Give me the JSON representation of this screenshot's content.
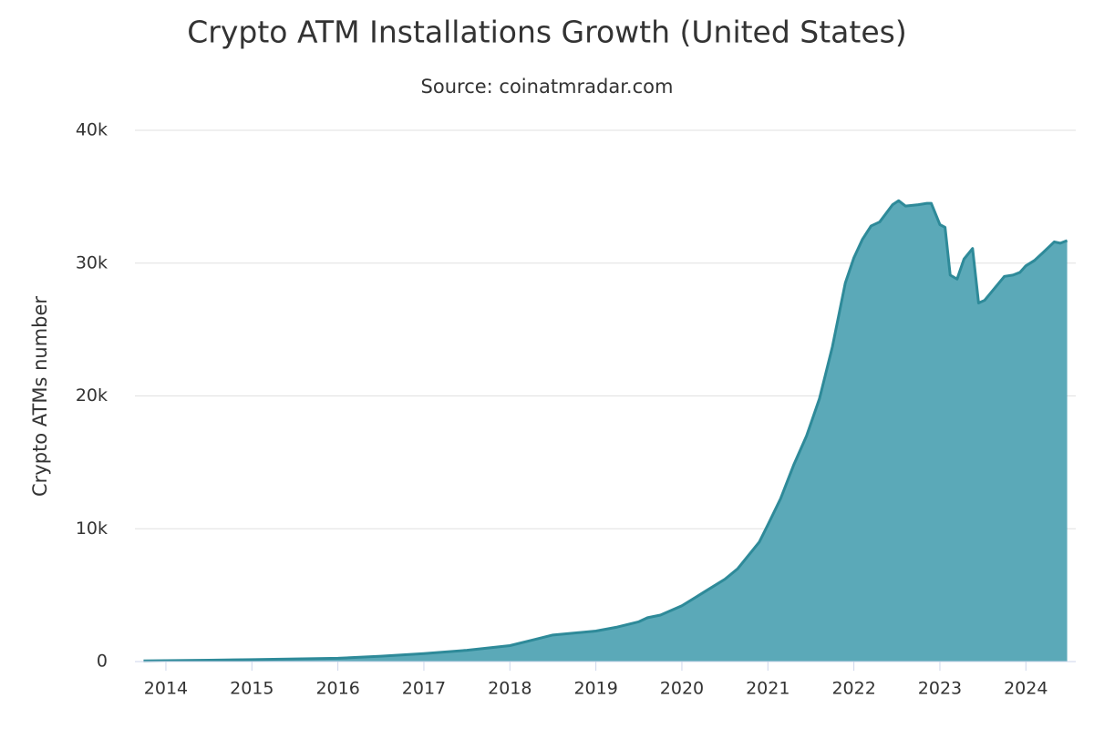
{
  "chart_data": {
    "type": "area",
    "title": "Crypto ATM Installations Growth (United States)",
    "subtitle": "Source: coinatmradar.com",
    "y_label": "Crypto ATMs number",
    "x": [
      2013.74,
      2014.5,
      2015,
      2015.5,
      2016,
      2016.5,
      2017,
      2017.5,
      2018,
      2018.25,
      2018.5,
      2019,
      2019.25,
      2019.5,
      2019.6,
      2019.75,
      2020,
      2020.25,
      2020.5,
      2020.65,
      2020.75,
      2020.9,
      2021,
      2021.15,
      2021.3,
      2021.45,
      2021.6,
      2021.75,
      2021.9,
      2022,
      2022.1,
      2022.2,
      2022.3,
      2022.45,
      2022.52,
      2022.6,
      2022.75,
      2022.85,
      2022.9,
      2023,
      2023.06,
      2023.12,
      2023.2,
      2023.28,
      2023.38,
      2023.45,
      2023.52,
      2023.75,
      2023.85,
      2023.93,
      2024,
      2024.1,
      2024.2,
      2024.33,
      2024.4,
      2024.48
    ],
    "values": [
      50,
      100,
      150,
      200,
      250,
      400,
      600,
      850,
      1200,
      1600,
      2000,
      2300,
      2600,
      3000,
      3300,
      3500,
      4200,
      5200,
      6200,
      7000,
      7800,
      9000,
      10300,
      12300,
      14800,
      17000,
      19800,
      23700,
      28500,
      30400,
      31800,
      32800,
      33100,
      34400,
      34700,
      34300,
      34400,
      34500,
      34500,
      32900,
      32700,
      29100,
      28800,
      30300,
      31100,
      27000,
      27200,
      29000,
      29100,
      29300,
      29800,
      30200,
      30800,
      31600,
      31500,
      31700
    ],
    "color": "#5ba9b8",
    "line_color": "#2e8a99",
    "xlim": [
      2013.64,
      2024.58
    ],
    "xticks": [
      2014,
      2015,
      2016,
      2017,
      2018,
      2019,
      2020,
      2021,
      2022,
      2023,
      2024
    ],
    "ylim": [
      0,
      40000
    ],
    "yticks": [
      0,
      {
        "value": 10000,
        "label": "10k"
      },
      {
        "value": 20000,
        "label": "20k"
      },
      {
        "value": 30000,
        "label": "30k"
      },
      {
        "value": 40000,
        "label": "40k"
      }
    ],
    "grid": true
  }
}
